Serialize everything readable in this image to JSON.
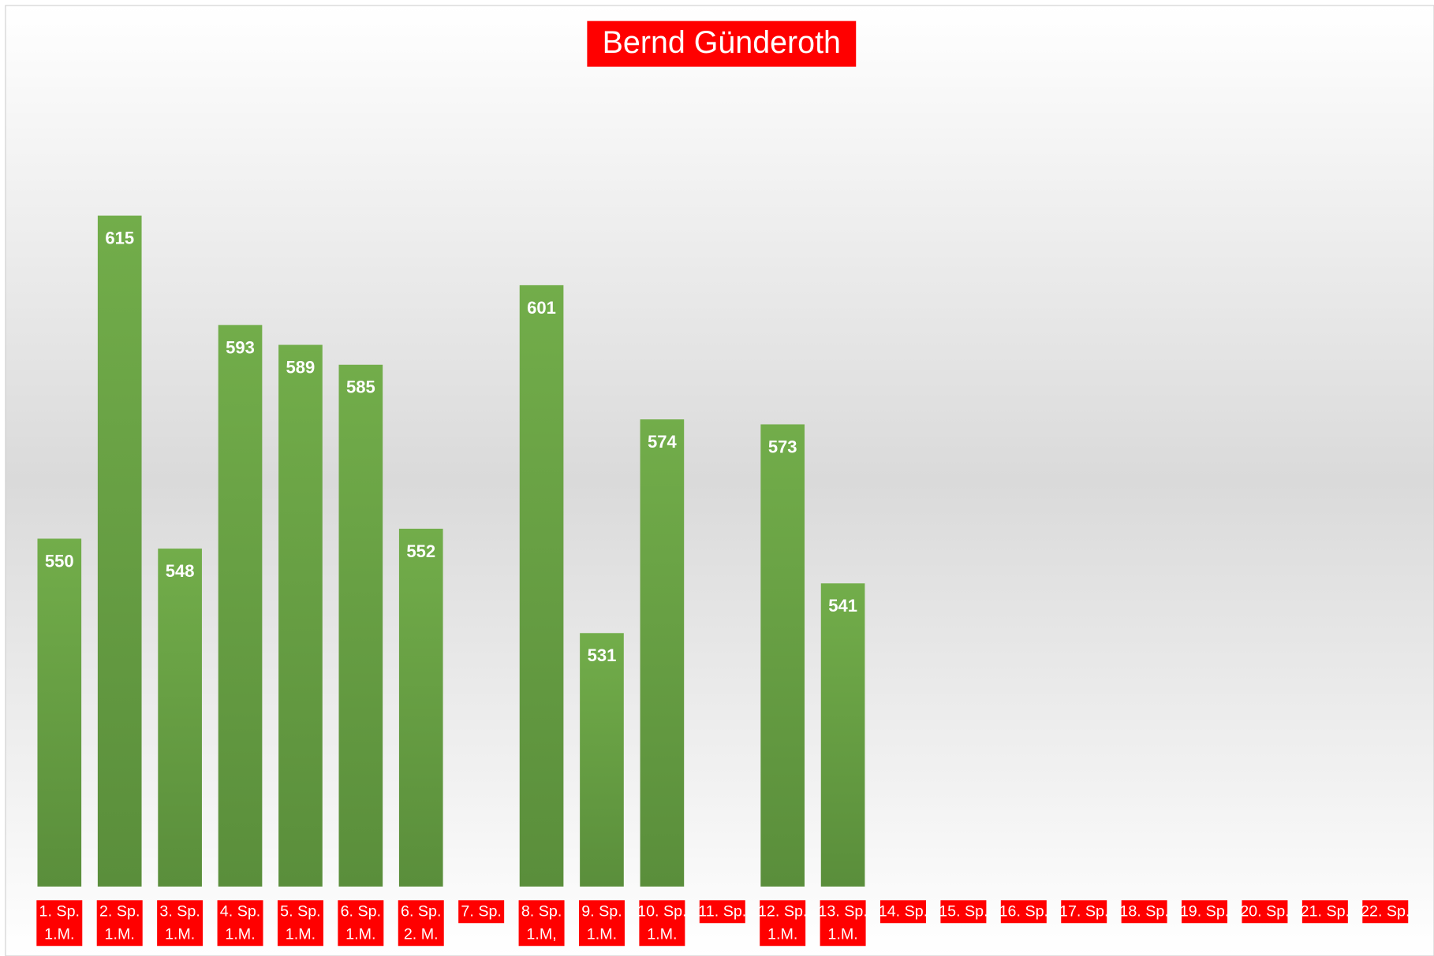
{
  "chart_data": {
    "type": "bar",
    "title": "Bernd Günderoth",
    "categories": [
      [
        "1. Sp.",
        "1.M."
      ],
      [
        "2. Sp.",
        "1.M."
      ],
      [
        "3. Sp.",
        "1.M."
      ],
      [
        "4. Sp.",
        "1.M."
      ],
      [
        "5. Sp.",
        "1.M."
      ],
      [
        "6. Sp.",
        "1.M."
      ],
      [
        "6. Sp.",
        "2. M."
      ],
      [
        "7. Sp."
      ],
      [
        "8. Sp.",
        "1.M,"
      ],
      [
        "9. Sp.",
        "1.M."
      ],
      [
        "10. Sp.",
        "1.M."
      ],
      [
        "11. Sp."
      ],
      [
        "12. Sp.",
        "1.M."
      ],
      [
        "13. Sp.",
        "1.M."
      ],
      [
        "14. Sp."
      ],
      [
        "15. Sp."
      ],
      [
        "16. Sp."
      ],
      [
        "17. Sp."
      ],
      [
        "18. Sp."
      ],
      [
        "19. Sp."
      ],
      [
        "20. Sp."
      ],
      [
        "21. Sp."
      ],
      [
        "22. Sp."
      ]
    ],
    "values": [
      550,
      615,
      548,
      593,
      589,
      585,
      552,
      null,
      601,
      531,
      574,
      null,
      573,
      541,
      null,
      null,
      null,
      null,
      null,
      null,
      null,
      null,
      null
    ],
    "color": "#70ad47",
    "ylim": [
      480,
      640
    ]
  }
}
